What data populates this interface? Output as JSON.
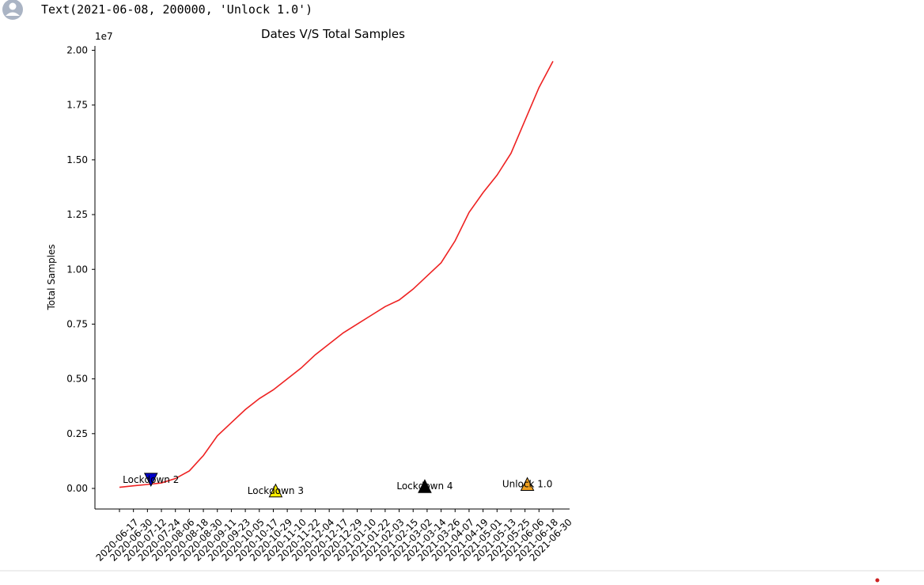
{
  "output_text": "Text(2021-06-08, 200000, 'Unlock 1.0')",
  "chart_data": {
    "type": "line",
    "title": "Dates V/S Total Samples",
    "y_label": "Total Samples",
    "y_offset_label": "1e7",
    "color": "#ee2222",
    "x": [
      "2020-06-17",
      "2020-06-30",
      "2020-07-12",
      "2020-07-24",
      "2020-08-06",
      "2020-08-18",
      "2020-08-30",
      "2020-09-11",
      "2020-09-23",
      "2020-10-05",
      "2020-10-17",
      "2020-10-29",
      "2020-11-10",
      "2020-11-22",
      "2020-12-04",
      "2020-12-17",
      "2020-12-29",
      "2021-01-10",
      "2021-01-22",
      "2021-02-03",
      "2021-02-15",
      "2021-03-02",
      "2021-03-14",
      "2021-03-26",
      "2021-04-07",
      "2021-04-19",
      "2021-05-01",
      "2021-05-13",
      "2021-05-25",
      "2021-06-06",
      "2021-06-18",
      "2021-06-30"
    ],
    "values": [
      50000,
      120000,
      180000,
      250000,
      450000,
      800000,
      1500000,
      2400000,
      3000000,
      3600000,
      4100000,
      4500000,
      5000000,
      5500000,
      6100000,
      6600000,
      7100000,
      7500000,
      7900000,
      8300000,
      8600000,
      9100000,
      9700000,
      10300000,
      11300000,
      12600000,
      13500000,
      14300000,
      15300000,
      16800000,
      18300000,
      19500000
    ],
    "xticks": [
      "2020-06-17",
      "2020-06-30",
      "2020-07-12",
      "2020-07-24",
      "2020-08-06",
      "2020-08-18",
      "2020-08-30",
      "2020-09-11",
      "2020-09-23",
      "2020-10-05",
      "2020-10-17",
      "2020-10-29",
      "2020-11-10",
      "2020-11-22",
      "2020-12-04",
      "2020-12-17",
      "2020-12-29",
      "2021-01-10",
      "2021-01-22",
      "2021-02-03",
      "2021-02-15",
      "2021-03-02",
      "2021-03-14",
      "2021-03-26",
      "2021-04-07",
      "2021-04-19",
      "2021-05-01",
      "2021-05-13",
      "2021-05-25",
      "2021-06-06",
      "2021-06-18",
      "2021-06-30"
    ],
    "ylim": [
      -940000,
      20200000
    ],
    "yticks": [
      {
        "value": 0,
        "label": "0.00"
      },
      {
        "value": 2500000,
        "label": "0.25"
      },
      {
        "value": 5000000,
        "label": "0.50"
      },
      {
        "value": 7500000,
        "label": "0.75"
      },
      {
        "value": 10000000,
        "label": "1.00"
      },
      {
        "value": 12500000,
        "label": "1.25"
      },
      {
        "value": 15000000,
        "label": "1.50"
      },
      {
        "value": 17500000,
        "label": "1.75"
      },
      {
        "value": 20000000,
        "label": "2.00"
      }
    ],
    "annotations": [
      {
        "text": "Lockdown 2",
        "x": "2020-07-15",
        "y": 400000,
        "marker": "v",
        "color": "#0000cc"
      },
      {
        "text": "Lockdown 3",
        "x": "2020-10-31",
        "y": -100000,
        "marker": "^",
        "color": "#ffee00"
      },
      {
        "text": "Lockdown 4",
        "x": "2021-03-12",
        "y": 100000,
        "marker": "^",
        "color": "#000000"
      },
      {
        "text": "Unlock 1.0",
        "x": "2021-06-08",
        "y": 200000,
        "marker": "^",
        "color": "#f0a020"
      }
    ]
  }
}
